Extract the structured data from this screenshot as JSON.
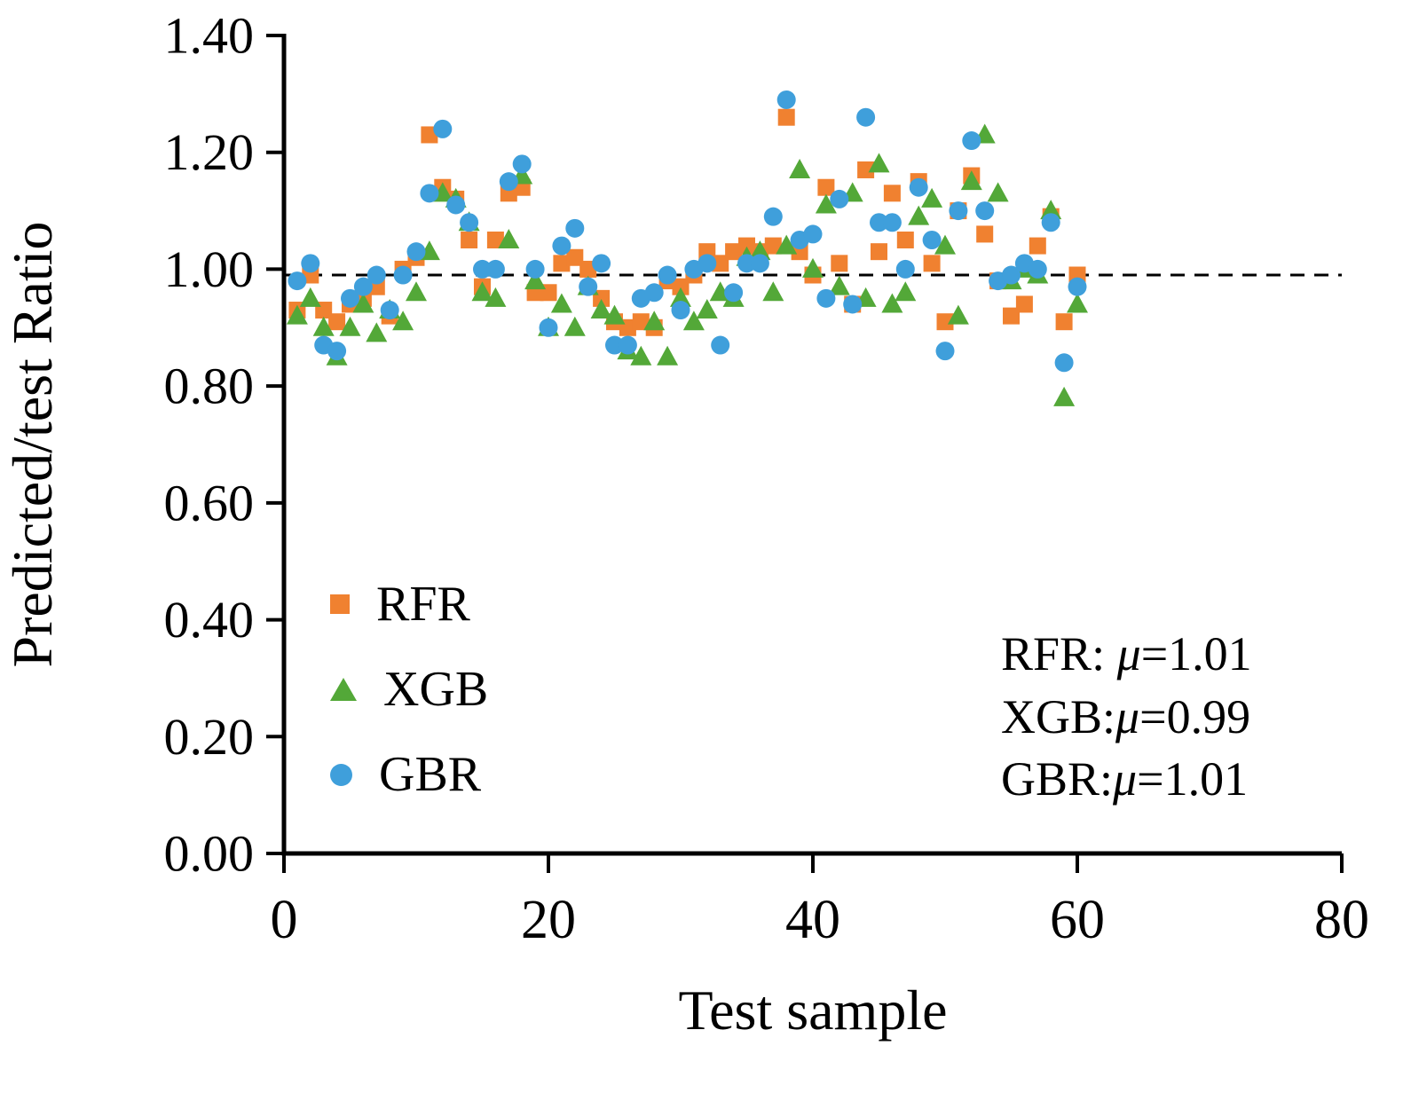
{
  "chart_data": {
    "type": "scatter",
    "title": "",
    "xlabel": "Test sample",
    "ylabel": "Predicted/test Ratio",
    "xlim": [
      0,
      80
    ],
    "ylim": [
      0.0,
      1.4
    ],
    "xticks": [
      0,
      20,
      40,
      60,
      80
    ],
    "xtick_labels": [
      "0",
      "20",
      "40",
      "60",
      "80"
    ],
    "yticks": [
      0.0,
      0.2,
      0.4,
      0.6,
      0.8,
      1.0,
      1.2,
      1.4
    ],
    "ytick_labels": [
      "0.00",
      "0.20",
      "0.40",
      "0.60",
      "0.80",
      "1.00",
      "1.20",
      "1.40"
    ],
    "grid": false,
    "legend_position": "inside-lower-left",
    "reference_line_y": 0.99,
    "x": [
      1,
      2,
      3,
      4,
      5,
      6,
      7,
      8,
      9,
      10,
      11,
      12,
      13,
      14,
      15,
      16,
      17,
      18,
      19,
      20,
      21,
      22,
      23,
      24,
      25,
      26,
      27,
      28,
      29,
      30,
      31,
      32,
      33,
      34,
      35,
      36,
      37,
      38,
      39,
      40,
      41,
      42,
      43,
      44,
      45,
      46,
      47,
      48,
      49,
      50,
      51,
      52,
      53,
      54,
      55,
      56,
      57,
      58,
      59,
      60
    ],
    "series": [
      {
        "name": "RFR",
        "marker": "square",
        "color": "#F08130",
        "values": [
          0.93,
          0.99,
          0.93,
          0.91,
          0.94,
          0.95,
          0.97,
          0.92,
          1.0,
          1.02,
          1.23,
          1.14,
          1.12,
          1.05,
          0.97,
          1.05,
          1.13,
          1.14,
          0.96,
          0.96,
          1.01,
          1.02,
          1.0,
          0.95,
          0.91,
          0.9,
          0.91,
          0.9,
          0.98,
          0.97,
          0.99,
          1.03,
          1.01,
          1.03,
          1.04,
          1.03,
          1.04,
          1.26,
          1.03,
          0.99,
          1.14,
          1.01,
          0.94,
          1.17,
          1.03,
          1.13,
          1.05,
          1.15,
          1.01,
          0.91,
          1.1,
          1.16,
          1.06,
          0.98,
          0.92,
          0.94,
          1.04,
          1.09,
          0.91,
          0.99
        ]
      },
      {
        "name": "XGB",
        "marker": "triangle",
        "color": "#53A838",
        "values": [
          0.92,
          0.95,
          0.9,
          0.85,
          0.9,
          0.94,
          0.89,
          0.93,
          0.91,
          0.96,
          1.03,
          1.13,
          1.12,
          1.08,
          0.96,
          0.95,
          1.05,
          1.16,
          0.98,
          0.9,
          0.94,
          0.9,
          0.97,
          0.93,
          0.92,
          0.86,
          0.85,
          0.91,
          0.85,
          0.95,
          0.91,
          0.93,
          0.96,
          0.95,
          1.02,
          1.03,
          0.96,
          1.04,
          1.17,
          1.0,
          1.11,
          0.97,
          1.13,
          0.95,
          1.18,
          0.94,
          0.96,
          1.09,
          1.12,
          1.04,
          0.92,
          1.15,
          1.23,
          1.13,
          0.98,
          1.0,
          0.99,
          1.1,
          0.78,
          0.94
        ]
      },
      {
        "name": "GBR",
        "marker": "circle",
        "color": "#3F9FDB",
        "values": [
          0.98,
          1.01,
          0.87,
          0.86,
          0.95,
          0.97,
          0.99,
          0.93,
          0.99,
          1.03,
          1.13,
          1.24,
          1.11,
          1.08,
          1.0,
          1.0,
          1.15,
          1.18,
          1.0,
          0.9,
          1.04,
          1.07,
          0.97,
          1.01,
          0.87,
          0.87,
          0.95,
          0.96,
          0.99,
          0.93,
          1.0,
          1.01,
          0.87,
          0.96,
          1.01,
          1.01,
          1.09,
          1.29,
          1.05,
          1.06,
          0.95,
          1.12,
          0.94,
          1.26,
          1.08,
          1.08,
          1.0,
          1.14,
          1.05,
          0.86,
          1.1,
          1.22,
          1.1,
          0.98,
          0.99,
          1.01,
          1.0,
          1.08,
          0.84,
          0.97
        ]
      }
    ],
    "annotations": [
      {
        "text": "RFR: μ=1.01",
        "prefix": "RFR: ",
        "mu": "μ",
        "value": "=1.01"
      },
      {
        "text": "XGB:μ=0.99",
        "prefix": "XGB:",
        "mu": "μ",
        "value": "=0.99"
      },
      {
        "text": "GBR:μ=1.01",
        "prefix": "GBR:",
        "mu": "μ",
        "value": "=1.01"
      }
    ]
  }
}
